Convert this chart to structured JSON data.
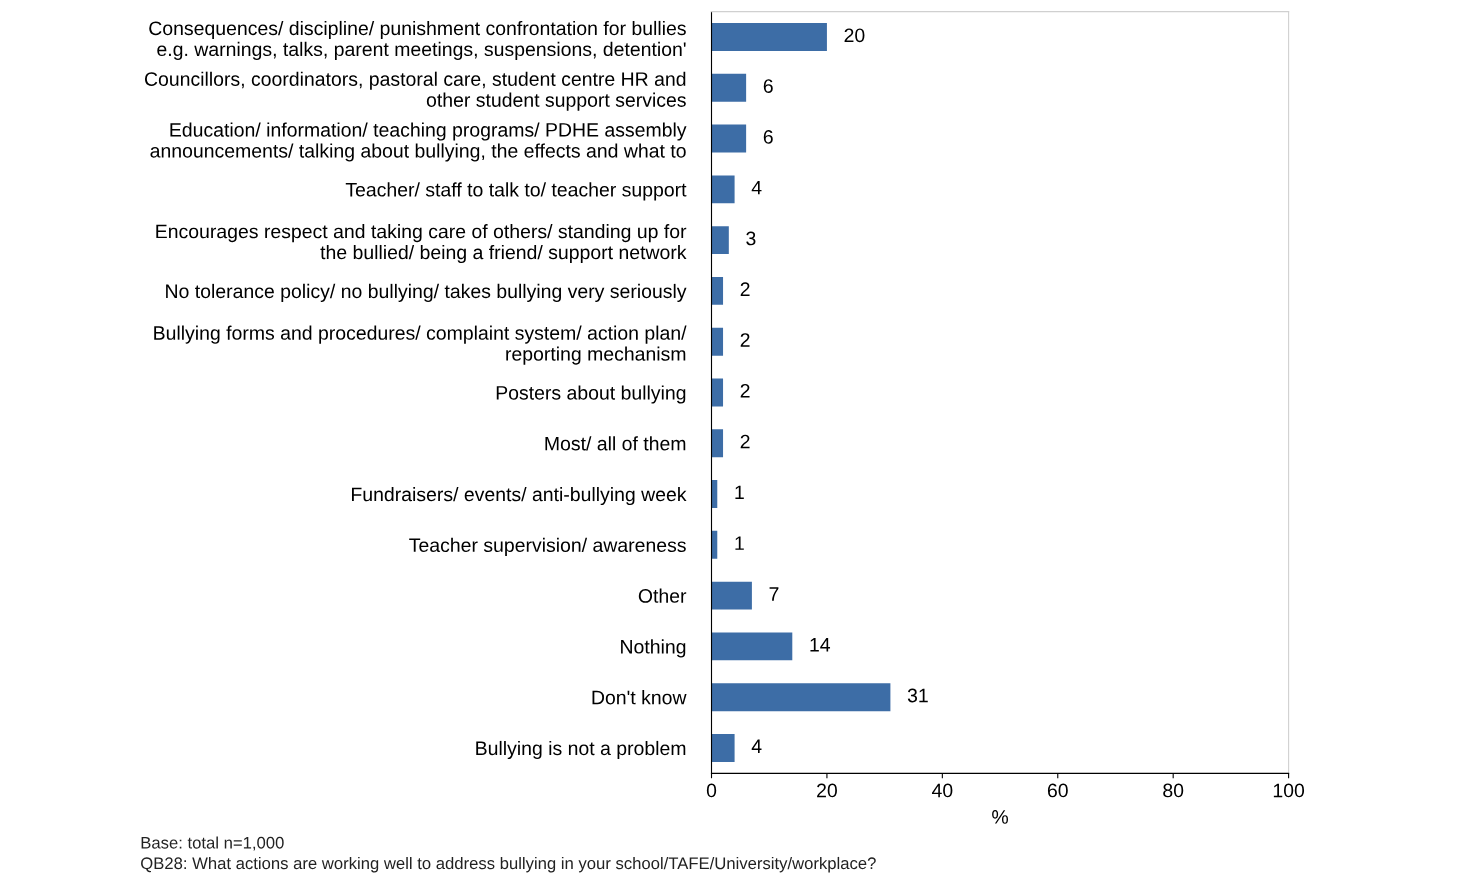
{
  "chart_data": {
    "type": "bar",
    "orientation": "horizontal",
    "xlabel": "%",
    "categories": [
      "Consequences/ discipline/ punishment confrontation for bullies\ne.g. warnings, talks, parent meetings, suspensions, detention'",
      "Councillors, coordinators, pastoral care, student centre HR and\nother student support services",
      "Education/ information/ teaching programs/ PDHE assembly\nannouncements/ talking about bullying, the effects and what to",
      "Teacher/ staff to talk to/ teacher support",
      "Encourages respect and taking care of others/ standing up for\nthe bullied/ being a friend/ support network",
      "No tolerance policy/ no bullying/ takes bullying very seriously",
      "Bullying forms and procedures/ complaint system/ action plan/\nreporting mechanism",
      "Posters about bullying",
      "Most/ all of them",
      "Fundraisers/ events/ anti-bullying week",
      "Teacher supervision/ awareness",
      "Other",
      "Nothing",
      "Don't know",
      "Bullying is not a problem"
    ],
    "values": [
      20,
      6,
      6,
      4,
      3,
      2,
      2,
      2,
      2,
      1,
      1,
      7,
      14,
      31,
      4
    ],
    "color": "#3d6da6",
    "data_labels": true,
    "grid": false,
    "legend": false,
    "xlim": [
      0,
      100
    ],
    "xticks": [
      0,
      20,
      40,
      60,
      80,
      100
    ],
    "annotations": [
      "Base: total n=1,000",
      "QB28: What actions are working well to address bullying in your school/TAFE/University/workplace?"
    ]
  }
}
